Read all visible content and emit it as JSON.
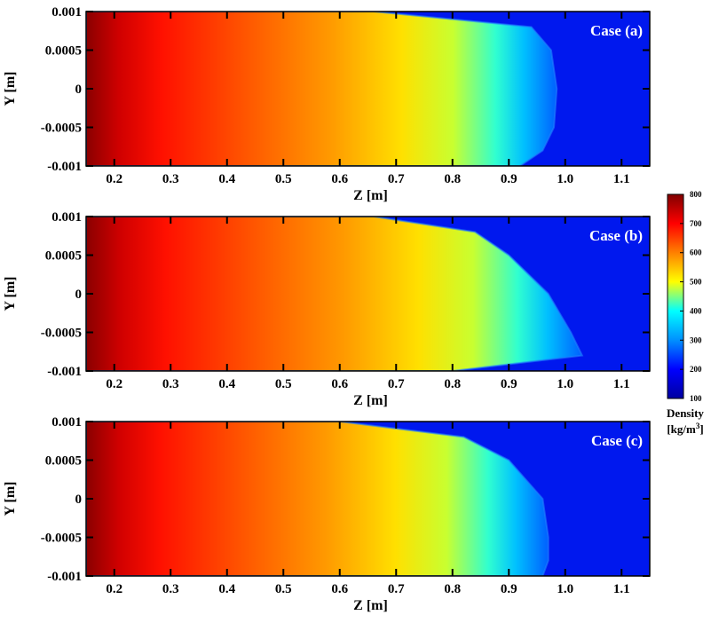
{
  "chart_data": [
    {
      "type": "heatmap",
      "annotation": "Case (a)",
      "xlabel": "Z [m]",
      "ylabel": "Y [m]",
      "xlim": [
        0.15,
        1.15
      ],
      "ylim": [
        -0.001,
        0.001
      ],
      "x_ticks": [
        "0.2",
        "0.3",
        "0.4",
        "0.5",
        "0.6",
        "0.7",
        "0.8",
        "0.9",
        "1.0",
        "1.1"
      ],
      "y_ticks": [
        "0.001",
        "0.0005",
        "0",
        "-0.0005",
        "-0.001"
      ],
      "front_profile": [
        [
          0.001,
          0.66
        ],
        [
          0.0008,
          0.94
        ],
        [
          0.0005,
          0.975
        ],
        [
          0.0,
          0.985
        ],
        [
          -0.0005,
          0.98
        ],
        [
          -0.0008,
          0.96
        ],
        [
          -0.001,
          0.92
        ]
      ]
    },
    {
      "type": "heatmap",
      "annotation": "Case (b)",
      "xlabel": "Z [m]",
      "ylabel": "Y [m]",
      "xlim": [
        0.15,
        1.15
      ],
      "ylim": [
        -0.001,
        0.001
      ],
      "x_ticks": [
        "0.2",
        "0.3",
        "0.4",
        "0.5",
        "0.6",
        "0.7",
        "0.8",
        "0.9",
        "1.0",
        "1.1"
      ],
      "y_ticks": [
        "0.001",
        "0.0005",
        "0",
        "-0.0005",
        "-0.001"
      ],
      "front_profile": [
        [
          0.001,
          0.66
        ],
        [
          0.0008,
          0.84
        ],
        [
          0.0005,
          0.9
        ],
        [
          0.0,
          0.97
        ],
        [
          -0.0005,
          1.01
        ],
        [
          -0.0008,
          1.03
        ],
        [
          -0.001,
          0.8
        ]
      ]
    },
    {
      "type": "heatmap",
      "annotation": "Case (c)",
      "xlabel": "Z [m]",
      "ylabel": "Y [m]",
      "xlim": [
        0.15,
        1.15
      ],
      "ylim": [
        -0.001,
        0.001
      ],
      "x_ticks": [
        "0.2",
        "0.3",
        "0.4",
        "0.5",
        "0.6",
        "0.7",
        "0.8",
        "0.9",
        "1.0",
        "1.1"
      ],
      "y_ticks": [
        "0.001",
        "0.0005",
        "0",
        "-0.0005",
        "-0.001"
      ],
      "front_profile": [
        [
          0.001,
          0.6
        ],
        [
          0.0008,
          0.82
        ],
        [
          0.0005,
          0.9
        ],
        [
          0.0,
          0.96
        ],
        [
          -0.0005,
          0.97
        ],
        [
          -0.0008,
          0.97
        ],
        [
          -0.001,
          0.96
        ]
      ]
    }
  ],
  "colorbar": {
    "title_line1": "Density",
    "title_base": "[kg/m",
    "title_sup": "3",
    "title_end": "]",
    "range": [
      100,
      800
    ],
    "ticks": [
      "800",
      "700",
      "600",
      "500",
      "400",
      "300",
      "200",
      "100"
    ],
    "colors": [
      "#0000a0",
      "#0000ff",
      "#0090ff",
      "#00ffff",
      "#ffff00",
      "#ff8000",
      "#ff0000",
      "#800000"
    ]
  }
}
